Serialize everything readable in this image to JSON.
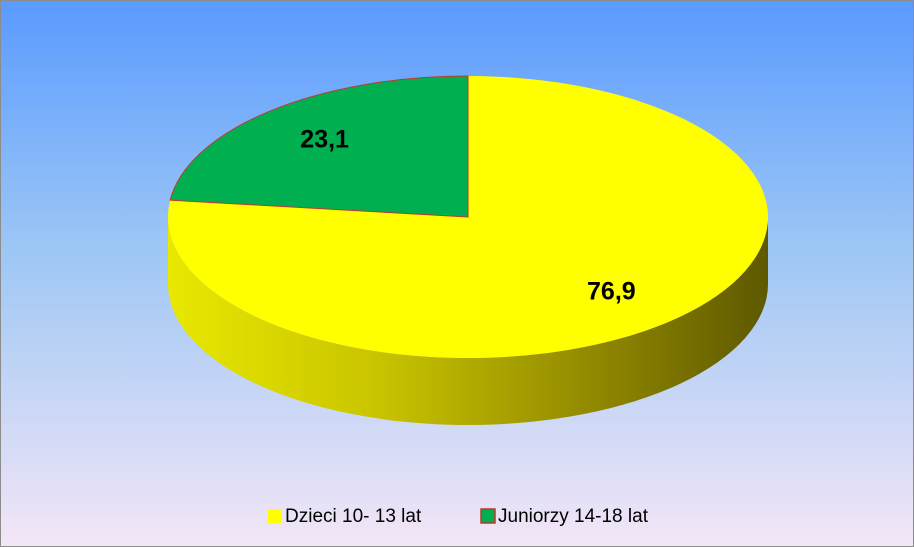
{
  "chart_data": {
    "type": "pie",
    "categories": [
      "Dzieci 10- 13 lat",
      "Juniorzy 14-18 lat"
    ],
    "values": [
      76.9,
      23.1
    ],
    "value_labels": [
      "76,9",
      "23,1"
    ],
    "colors": [
      "#ffff00",
      "#00b050"
    ],
    "legend": "bottom"
  }
}
